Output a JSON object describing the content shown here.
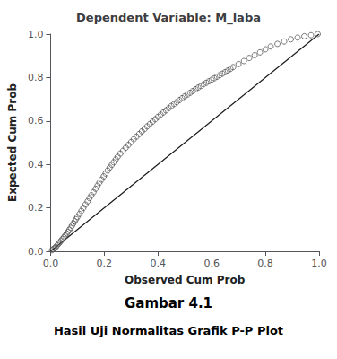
{
  "chart_data": {
    "type": "scatter",
    "title": "Dependent Variable: M_laba",
    "xlabel": "Observed Cum Prob",
    "ylabel": "Expected Cum Prob",
    "annotations": [
      "Gambar 4.1",
      "Hasil Uji Normalitas Grafik P-P Plot"
    ],
    "xlim": [
      0.0,
      1.0
    ],
    "ylim": [
      0.0,
      1.0
    ],
    "xticks": [
      {
        "value": 0.0,
        "label": "0.0"
      },
      0.2,
      0.4,
      0.6,
      0.8,
      {
        "value": 1.0,
        "label": "1.0"
      }
    ],
    "yticks": [
      {
        "value": 0.0,
        "label": "0.0"
      },
      0.2,
      0.4,
      0.6,
      0.8,
      {
        "value": 1.0,
        "label": "1.0"
      }
    ],
    "grid": false,
    "series": [
      {
        "type": "line",
        "color": "#1a1a1a",
        "line_style": "solid",
        "x": [
          0,
          1
        ],
        "values": [
          0,
          1
        ]
      },
      {
        "type": "scatter",
        "color": "#555555",
        "marker": "circle",
        "x": [
          0.005,
          0.01,
          0.015,
          0.02,
          0.025,
          0.03,
          0.035,
          0.04,
          0.045,
          0.05,
          0.055,
          0.06,
          0.065,
          0.07,
          0.075,
          0.08,
          0.085,
          0.09,
          0.095,
          0.1,
          0.108,
          0.115,
          0.122,
          0.13,
          0.138,
          0.145,
          0.152,
          0.16,
          0.168,
          0.175,
          0.182,
          0.19,
          0.198,
          0.205,
          0.213,
          0.22,
          0.228,
          0.235,
          0.243,
          0.25,
          0.26,
          0.27,
          0.28,
          0.29,
          0.3,
          0.31,
          0.32,
          0.33,
          0.34,
          0.35,
          0.36,
          0.37,
          0.38,
          0.39,
          0.4,
          0.41,
          0.42,
          0.43,
          0.44,
          0.45,
          0.46,
          0.47,
          0.48,
          0.49,
          0.5,
          0.51,
          0.52,
          0.53,
          0.54,
          0.55,
          0.56,
          0.57,
          0.58,
          0.59,
          0.6,
          0.61,
          0.62,
          0.63,
          0.64,
          0.65,
          0.66,
          0.67,
          0.68,
          0.7,
          0.72,
          0.74,
          0.76,
          0.78,
          0.8,
          0.82,
          0.845,
          0.87,
          0.895,
          0.92,
          0.945,
          0.97,
          0.995
        ],
        "values": [
          0.005,
          0.01,
          0.015,
          0.02,
          0.028,
          0.035,
          0.042,
          0.05,
          0.058,
          0.065,
          0.073,
          0.082,
          0.09,
          0.099,
          0.108,
          0.118,
          0.128,
          0.138,
          0.148,
          0.158,
          0.172,
          0.186,
          0.2,
          0.215,
          0.23,
          0.245,
          0.258,
          0.272,
          0.288,
          0.302,
          0.316,
          0.33,
          0.345,
          0.358,
          0.372,
          0.385,
          0.398,
          0.41,
          0.423,
          0.435,
          0.45,
          0.463,
          0.477,
          0.49,
          0.503,
          0.516,
          0.528,
          0.54,
          0.552,
          0.563,
          0.575,
          0.586,
          0.597,
          0.608,
          0.619,
          0.629,
          0.639,
          0.649,
          0.659,
          0.669,
          0.678,
          0.687,
          0.696,
          0.705,
          0.714,
          0.722,
          0.73,
          0.738,
          0.746,
          0.754,
          0.761,
          0.769,
          0.776,
          0.783,
          0.79,
          0.797,
          0.804,
          0.811,
          0.818,
          0.825,
          0.832,
          0.84,
          0.848,
          0.862,
          0.876,
          0.89,
          0.903,
          0.916,
          0.93,
          0.943,
          0.955,
          0.966,
          0.976,
          0.984,
          0.99,
          0.995,
          1.0
        ]
      }
    ]
  }
}
